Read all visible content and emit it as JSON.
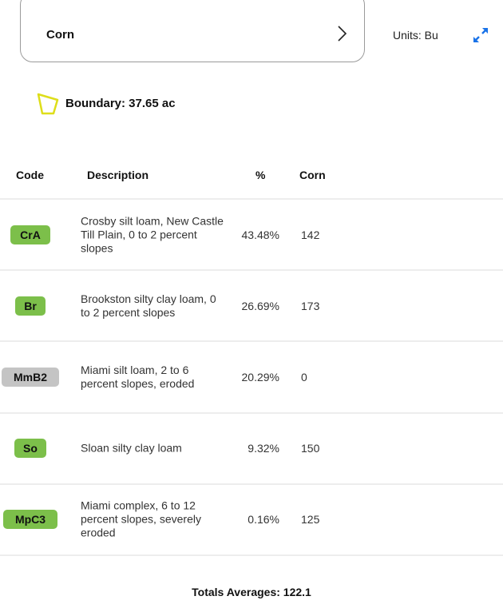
{
  "crop_selector": {
    "label": "Corn"
  },
  "units": "Units: Bu",
  "boundary": "Boundary: 37.65 ac",
  "colors": {
    "badge_green": "#7cbf4a",
    "badge_gray": "#c4c4c4",
    "expand_blue": "#1a73e8",
    "boundary_yellow": "#e0e020"
  },
  "table": {
    "headers": [
      "Code",
      "Description",
      "%",
      "Corn"
    ],
    "rows": [
      {
        "code": "CrA",
        "color": "green",
        "description": "Crosby silt loam, New Castle Till Plain, 0 to 2 percent slopes",
        "percent": "43.48%",
        "corn": "142"
      },
      {
        "code": "Br",
        "color": "green",
        "description": "Brookston silty clay loam, 0 to 2 percent slopes",
        "percent": "26.69%",
        "corn": "173"
      },
      {
        "code": "MmB2",
        "color": "gray",
        "description": "Miami silt loam, 2 to 6 percent slopes, eroded",
        "percent": "20.29%",
        "corn": "0"
      },
      {
        "code": "So",
        "color": "green",
        "description": "Sloan silty clay loam",
        "percent": "9.32%",
        "corn": "150"
      },
      {
        "code": "MpC3",
        "color": "green",
        "description": "Miami complex, 6 to 12 percent slopes, severely eroded",
        "percent": "0.16%",
        "corn": "125"
      }
    ]
  },
  "totals": "Totals Averages: 122.1"
}
